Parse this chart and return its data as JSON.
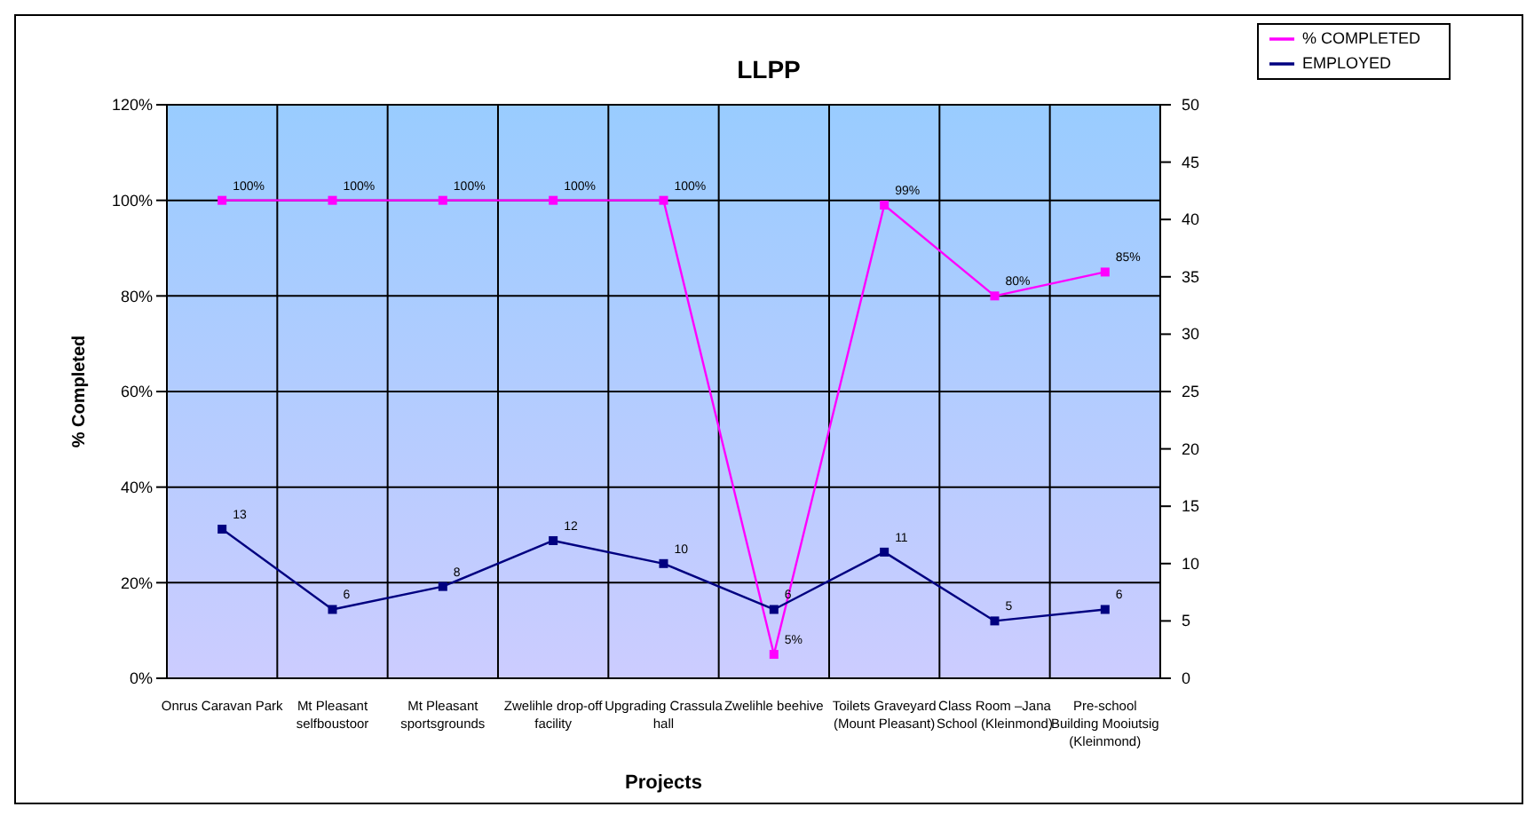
{
  "chart_data": {
    "type": "line",
    "title": "LLPP",
    "xlabel": "Projects",
    "ylabel": "% Completed",
    "categories": [
      "Onrus Caravan Park",
      "Mt Pleasant selfboustoor",
      "Mt Pleasant sportsgrounds",
      "Zwelihle drop-off facility",
      "Upgrading Crassula hall",
      "Zwelihle beehive",
      "Toilets Graveyard (Mount Pleasant)",
      "Class Room –Jana School (Kleinmond)",
      "Pre-school Building Mooiutsig (Kleinmond)"
    ],
    "series": [
      {
        "name": "% COMPLETED",
        "color": "#ff00ff",
        "values": [
          100,
          100,
          100,
          100,
          100,
          5,
          99,
          80,
          85
        ],
        "value_labels": [
          "100%",
          "100%",
          "100%",
          "100%",
          "100%",
          "5%",
          "99%",
          "80%",
          "85%"
        ]
      },
      {
        "name": "EMPLOYED",
        "color": "#000080",
        "axis": "y2",
        "values": [
          13,
          6,
          8,
          12,
          10,
          6,
          11,
          5,
          6
        ],
        "data_labels": true
      }
    ],
    "ylim": [
      0,
      120
    ],
    "yticks": [
      {
        "value": 0,
        "label": "0%"
      },
      {
        "value": 20,
        "label": "20%"
      },
      {
        "value": 40,
        "label": "40%"
      },
      {
        "value": 60,
        "label": "60%"
      },
      {
        "value": 80,
        "label": "80%"
      },
      {
        "value": 100,
        "label": "100%"
      },
      {
        "value": 120,
        "label": "120%"
      }
    ],
    "y2lim": [
      0,
      50
    ],
    "y2ticks": [
      0,
      5,
      10,
      15,
      20,
      25,
      30,
      35,
      40,
      45,
      50
    ],
    "grid": true,
    "legend": "top right",
    "marker": "square",
    "line_style": "solid"
  }
}
